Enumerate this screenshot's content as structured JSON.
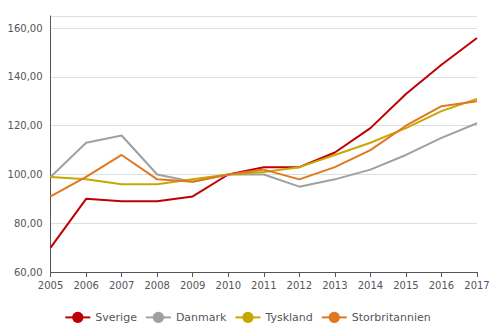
{
  "chart_data": {
    "type": "line",
    "categories": [
      "2005",
      "2006",
      "2007",
      "2008",
      "2009",
      "2010",
      "2011",
      "2012",
      "2013",
      "2014",
      "2015",
      "2016",
      "2017"
    ],
    "series": [
      {
        "name": "Sverige",
        "color": "#C00000",
        "values": [
          70,
          90,
          89,
          89,
          91,
          100,
          103,
          103,
          109,
          119,
          133,
          145,
          156
        ]
      },
      {
        "name": "Danmark",
        "color": "#A0A0A0",
        "values": [
          99,
          113,
          116,
          100,
          97,
          100,
          100,
          95,
          98,
          102,
          108,
          115,
          121
        ]
      },
      {
        "name": "Tyskland",
        "color": "#C8A800",
        "values": [
          99,
          98,
          96,
          96,
          98,
          100,
          101,
          103,
          108,
          113,
          119,
          126,
          131
        ]
      },
      {
        "name": "Storbritannien",
        "color": "#E07820",
        "values": [
          91,
          99,
          108,
          98,
          97,
          100,
          102,
          98,
          103,
          110,
          120,
          128,
          130
        ]
      }
    ],
    "ylim": [
      60,
      165
    ],
    "yticks": [
      {
        "value": 60,
        "label": "60,00"
      },
      {
        "value": 80,
        "label": "80,00"
      },
      {
        "value": 100,
        "label": "100,00"
      },
      {
        "value": 120,
        "label": "120,00"
      },
      {
        "value": 140,
        "label": "140,00"
      },
      {
        "value": 160,
        "label": "160,00"
      }
    ],
    "grid": true,
    "legend": "bottom"
  }
}
